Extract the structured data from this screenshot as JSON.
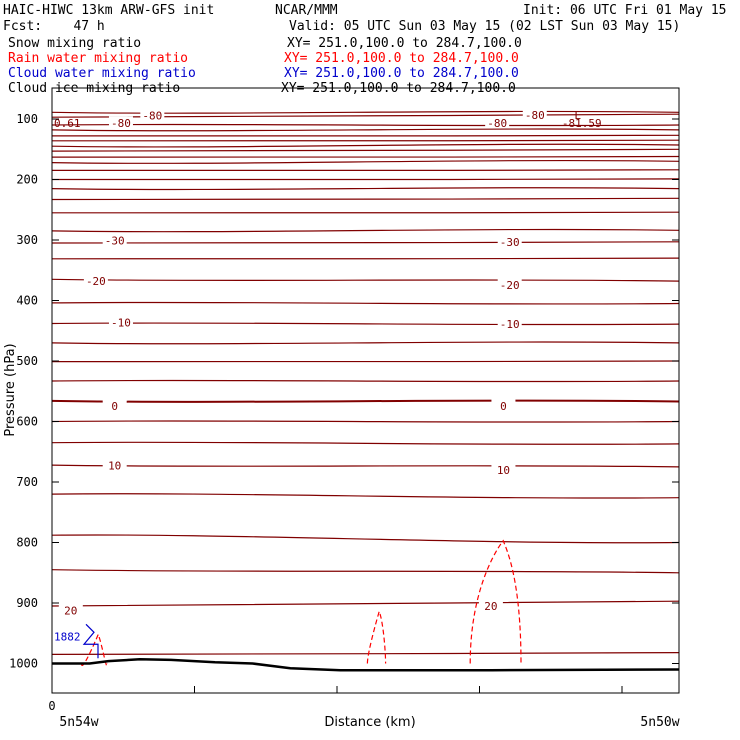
{
  "header": {
    "model": "HAIC-HIWC 13km ARW-GFS init",
    "org": "NCAR/MMM",
    "init": "Init: 06 UTC Fri 01 May 15",
    "fcst": "Fcst:    47 h",
    "valid": "Valid: 05 UTC Sun 03 May 15 (02 LST Sun 03 May 15)"
  },
  "fields": [
    {
      "name": "Snow mixing ratio",
      "xy": "XY= 251.0,100.0 to 284.7,100.0",
      "color": "#000000"
    },
    {
      "name": "Rain water mixing ratio",
      "xy": "XY= 251.0,100.0 to 284.7,100.0",
      "color": "#ff0000"
    },
    {
      "name": "Cloud water mixing ratio",
      "xy": "XY= 251.0,100.0 to 284.7,100.0",
      "color": "#0000cc"
    },
    {
      "name": "Cloud ice mixing ratio",
      "xy": "XY= 251.0,100.0 to 284.7,100.0",
      "color": "#000000"
    }
  ],
  "chart_data": {
    "type": "line",
    "ylabel": "Pressure (hPa)",
    "xlabel": "Distance (km)",
    "yticks": [
      "100",
      "200",
      "300",
      "400",
      "500",
      "600",
      "700",
      "800",
      "900",
      "1000"
    ],
    "ylim": [
      1050,
      60
    ],
    "x_origin_label": "0",
    "x_left_label": "5n54w",
    "x_right_label": "5n50w",
    "temperature_contours": {
      "color": "#800000",
      "labels": [
        {
          "text": "-80",
          "p": 94,
          "x": 0.16
        },
        {
          "text": "-80",
          "p": 107,
          "x": 0.11
        },
        {
          "text": "-80",
          "p": 107,
          "x": 0.71
        },
        {
          "text": "-80",
          "p": 93,
          "x": 0.77
        },
        {
          "text": "-30",
          "p": 301,
          "x": 0.1
        },
        {
          "text": "-30",
          "p": 303,
          "x": 0.73
        },
        {
          "text": "-20",
          "p": 368,
          "x": 0.07
        },
        {
          "text": "-20",
          "p": 374,
          "x": 0.73
        },
        {
          "text": "-10",
          "p": 436,
          "x": 0.11
        },
        {
          "text": "-10",
          "p": 439,
          "x": 0.73
        },
        {
          "text": "0",
          "p": 574,
          "x": 0.1
        },
        {
          "text": "0",
          "p": 574,
          "x": 0.72
        },
        {
          "text": "10",
          "p": 673,
          "x": 0.1
        },
        {
          "text": "10",
          "p": 680,
          "x": 0.72
        },
        {
          "text": "20",
          "p": 912,
          "x": 0.03
        },
        {
          "text": "20",
          "p": 905,
          "x": 0.7
        }
      ],
      "extrema": [
        {
          "text": "0.61",
          "p": 107,
          "x": 0.0
        },
        {
          "text": "L",
          "p": 93,
          "x": 0.83
        },
        {
          "text": "-81.59",
          "p": 107,
          "x": 0.81
        }
      ]
    },
    "rain_water_contours": {
      "color": "#ff0000",
      "cells": [
        {
          "x_start": 0.047,
          "x_end": 0.088,
          "p_top": 952
        },
        {
          "x_start": 0.503,
          "x_end": 0.532,
          "p_top": 914
        },
        {
          "x_start": 0.667,
          "x_end": 0.748,
          "p_top": 797
        }
      ]
    },
    "cloud_water_label": {
      "text": "1882",
      "color": "#0000cc",
      "p": 955,
      "x": 0.0
    },
    "terrain": [
      {
        "x": 0.0,
        "p": 1000
      },
      {
        "x": 0.06,
        "p": 1000
      },
      {
        "x": 0.09,
        "p": 996
      },
      {
        "x": 0.14,
        "p": 993
      },
      {
        "x": 0.19,
        "p": 994
      },
      {
        "x": 0.26,
        "p": 998
      },
      {
        "x": 0.32,
        "p": 1000
      },
      {
        "x": 0.38,
        "p": 1008
      },
      {
        "x": 0.46,
        "p": 1011
      },
      {
        "x": 0.7,
        "p": 1011
      },
      {
        "x": 1.0,
        "p": 1010
      }
    ]
  }
}
